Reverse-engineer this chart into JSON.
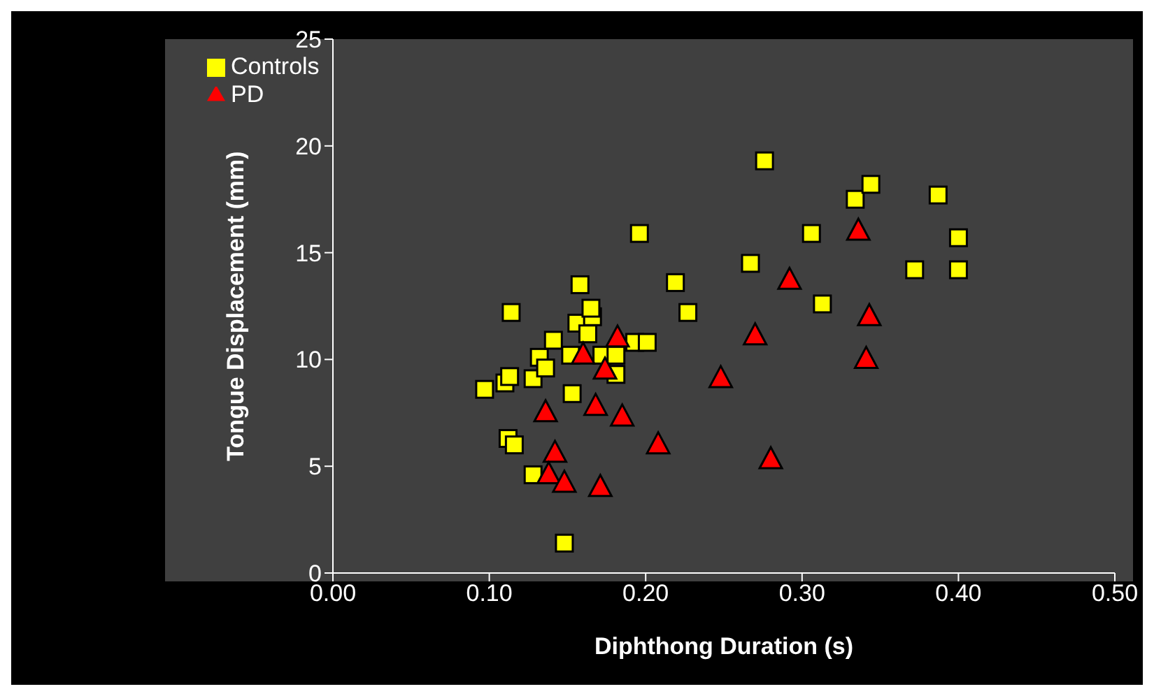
{
  "chart_data": {
    "type": "scatter",
    "xlabel": "Diphthong Duration (s)",
    "ylabel": "Tongue Displacement (mm)",
    "xlim": [
      0,
      0.5
    ],
    "xticks": [
      {
        "value": 0,
        "label": "0.00"
      },
      {
        "value": 0.1,
        "label": "0.10"
      },
      {
        "value": 0.2,
        "label": "0.20"
      },
      {
        "value": 0.3,
        "label": "0.30"
      },
      {
        "value": 0.4,
        "label": "0.40"
      },
      {
        "value": 0.5,
        "label": "0.50"
      }
    ],
    "ylim": [
      0,
      25
    ],
    "yticks": [
      0,
      5,
      10,
      15,
      20,
      25
    ],
    "grid": false,
    "legend": "top left",
    "series": [
      {
        "name": "Controls",
        "color": "#ffff00",
        "marker": "square",
        "x": [
          0.097,
          0.11,
          0.114,
          0.113,
          0.112,
          0.116,
          0.128,
          0.128,
          0.132,
          0.136,
          0.141,
          0.152,
          0.153,
          0.148,
          0.156,
          0.163,
          0.166,
          0.165,
          0.158,
          0.172,
          0.181,
          0.181,
          0.193,
          0.201,
          0.196,
          0.219,
          0.227,
          0.267,
          0.276,
          0.306,
          0.313,
          0.334,
          0.344,
          0.387,
          0.372,
          0.4,
          0.4
        ],
        "values": [
          8.6,
          8.9,
          12.2,
          9.2,
          6.3,
          6.0,
          4.6,
          9.1,
          10.1,
          9.6,
          10.9,
          10.2,
          8.4,
          1.4,
          11.7,
          11.2,
          12.0,
          12.4,
          13.5,
          10.2,
          9.3,
          10.2,
          10.8,
          10.8,
          15.9,
          13.6,
          12.2,
          14.5,
          19.3,
          15.9,
          12.6,
          17.5,
          18.2,
          17.7,
          14.2,
          15.7,
          14.2
        ]
      },
      {
        "name": "PD",
        "color": "#ff0000",
        "marker": "triangle",
        "x": [
          0.182,
          0.16,
          0.174,
          0.136,
          0.168,
          0.185,
          0.142,
          0.138,
          0.148,
          0.171,
          0.208,
          0.248,
          0.27,
          0.292,
          0.336,
          0.343,
          0.341,
          0.28
        ],
        "values": [
          11.0,
          10.2,
          9.5,
          7.5,
          7.8,
          7.3,
          5.6,
          4.6,
          4.2,
          4.0,
          6.0,
          9.1,
          11.1,
          13.7,
          16.0,
          12.0,
          10.0,
          5.3
        ]
      }
    ]
  }
}
